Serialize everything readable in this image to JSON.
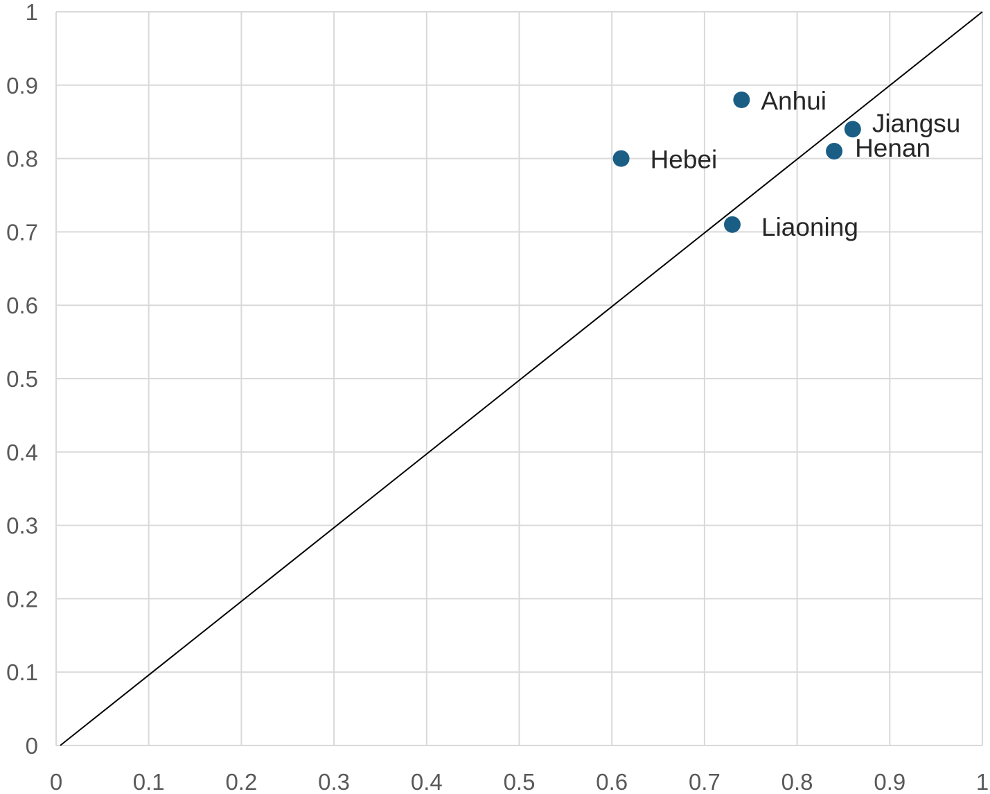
{
  "chart_data": {
    "type": "scatter",
    "title": "",
    "xlabel": "",
    "ylabel": "",
    "xlim": [
      0,
      1
    ],
    "ylim": [
      0,
      1
    ],
    "x_ticks": [
      "0",
      "0.1",
      "0.2",
      "0.3",
      "0.4",
      "0.5",
      "0.6",
      "0.7",
      "0.8",
      "0.9",
      "1"
    ],
    "y_ticks": [
      "0",
      "0.1",
      "0.2",
      "0.3",
      "0.4",
      "0.5",
      "0.6",
      "0.7",
      "0.8",
      "0.9",
      "1"
    ],
    "grid": true,
    "legend": "none",
    "marker_color": "#1a5d85",
    "points": [
      {
        "label": "Anhui",
        "x": 0.74,
        "y": 0.88
      },
      {
        "label": "Jiangsu",
        "x": 0.86,
        "y": 0.84
      },
      {
        "label": "Henan",
        "x": 0.84,
        "y": 0.81
      },
      {
        "label": "Hebei",
        "x": 0.61,
        "y": 0.8
      },
      {
        "label": "Liaoning",
        "x": 0.73,
        "y": 0.71
      }
    ],
    "reference_line": {
      "from": [
        0,
        0
      ],
      "to": [
        1,
        1
      ]
    }
  }
}
